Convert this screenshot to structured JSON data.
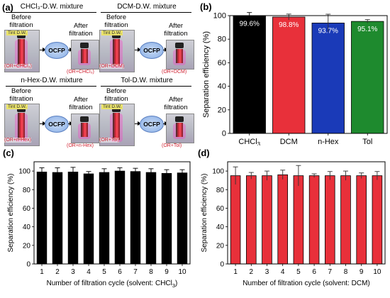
{
  "panel_a": {
    "letter": "(a)",
    "before_label": "Before\nfiltration",
    "after_label": "After\nfiltration",
    "ocfp_label": "OCFP",
    "mixtures": [
      {
        "title": "CHCl₃-D.W. mixture",
        "top_tag": "Tint D.W.",
        "bottom_before": "(OR+CHCl₃)",
        "bottom_after": "(OR+CHCl₃)"
      },
      {
        "title": "DCM-D.W. mixture",
        "top_tag": "Tint D.W.",
        "bottom_before": "(OR+DCM)",
        "bottom_after": "(OR+DCM)"
      },
      {
        "title": "n-Hex-D.W. mixture",
        "top_tag": "Tint D.W.",
        "bottom_before": "(OR+n-Hex)",
        "bottom_after": "(OR+n-Hex)"
      },
      {
        "title": "Tol-D.W. mixture",
        "top_tag": "Tint D.W.",
        "bottom_before": "(OR+Tol)",
        "bottom_after": "(OR+Tol)"
      }
    ],
    "vial_colors": {
      "liquid": "#e0283a",
      "glow": "#ff40c8",
      "ocfp_fill": "#9cbcec"
    }
  },
  "chart_data": [
    {
      "id": "b",
      "letter": "(b)",
      "type": "bar",
      "categories": [
        "CHCl3",
        "DCM",
        "n-Hex",
        "Tol"
      ],
      "category_labels_main": [
        "CHCl",
        "DCM",
        "n-Hex",
        "Tol"
      ],
      "category_labels_sub": [
        "3",
        "",
        "",
        ""
      ],
      "values": [
        99.6,
        98.8,
        93.7,
        95.1
      ],
      "errors": [
        3.0,
        2.5,
        7.5,
        1.5
      ],
      "data_labels": [
        "99.6%",
        "98.8%",
        "93.7%",
        "95.1%"
      ],
      "colors": [
        "#000000",
        "#e8303a",
        "#1a3ab8",
        "#1e8a2e"
      ],
      "ylabel": "Separation efficiency (%)",
      "ylim": [
        0,
        100
      ],
      "yticks": [
        0,
        20,
        40,
        60,
        80,
        100
      ]
    },
    {
      "id": "c",
      "letter": "(c)",
      "type": "bar",
      "categories": [
        "1",
        "2",
        "3",
        "4",
        "5",
        "6",
        "7",
        "8",
        "9",
        "10"
      ],
      "values": [
        99.0,
        98.5,
        99.0,
        97.0,
        98.5,
        100.0,
        99.5,
        98.5,
        97.5,
        98.0
      ],
      "errors": [
        4.5,
        5.0,
        5.0,
        2.5,
        4.0,
        3.5,
        3.5,
        4.0,
        4.0,
        3.5
      ],
      "color": "#000000",
      "xlabel": "Number of filtration cycle (solvent: CHCl",
      "xlabel_sub": "3",
      "xlabel_end": ")",
      "ylabel": "Separation efficiency (%)",
      "ylim": [
        0,
        110
      ],
      "yticks": [
        0,
        20,
        40,
        60,
        80,
        100
      ]
    },
    {
      "id": "d",
      "letter": "(d)",
      "type": "bar",
      "categories": [
        "1",
        "2",
        "3",
        "4",
        "5",
        "6",
        "7",
        "8",
        "9",
        "10"
      ],
      "values": [
        95.0,
        95.0,
        95.0,
        96.0,
        95.0,
        95.0,
        95.0,
        95.0,
        95.0,
        95.0
      ],
      "errors": [
        9.5,
        3.5,
        5.0,
        5.0,
        11.0,
        2.0,
        4.5,
        5.0,
        3.0,
        4.5
      ],
      "color": "#e8303a",
      "xlabel": "Number of filtration cycle (solvent: DCM)",
      "xlabel_sub": "",
      "xlabel_end": "",
      "ylabel": "Separation efficiency (%)",
      "ylim": [
        0,
        110
      ],
      "yticks": [
        0,
        20,
        40,
        60,
        80,
        100
      ]
    }
  ]
}
